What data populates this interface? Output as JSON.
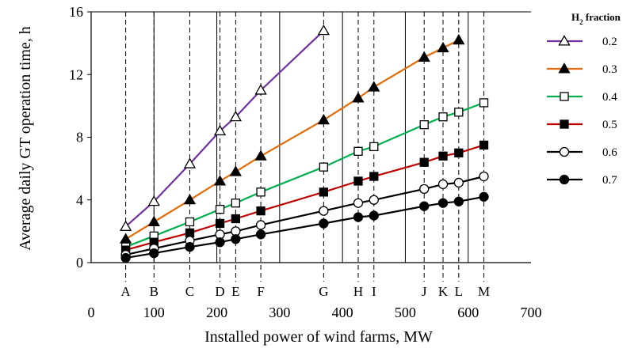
{
  "chart_data": {
    "type": "line",
    "xlabel": "Installed power of wind farms, MW",
    "ylabel": "Average daily GT operation time, h",
    "xlim": [
      0,
      700
    ],
    "ylim": [
      0,
      16
    ],
    "x_ticks": [
      "0",
      "100",
      "200",
      "300",
      "400",
      "500",
      "600",
      "700"
    ],
    "y_ticks": [
      "0",
      "4",
      "8",
      "12",
      "16"
    ],
    "grid": "vertical major gridlines",
    "legend_title_main": "H",
    "legend_title_sub": "2",
    "legend_title_rest": " fraction",
    "legend_position": "right",
    "sites": [
      {
        "label": "A",
        "x": 55
      },
      {
        "label": "B",
        "x": 100
      },
      {
        "label": "C",
        "x": 157
      },
      {
        "label": "D",
        "x": 205
      },
      {
        "label": "E",
        "x": 230
      },
      {
        "label": "F",
        "x": 270
      },
      {
        "label": "G",
        "x": 370
      },
      {
        "label": "H",
        "x": 425
      },
      {
        "label": "I",
        "x": 450
      },
      {
        "label": "J",
        "x": 530
      },
      {
        "label": "K",
        "x": 560
      },
      {
        "label": "L",
        "x": 585
      },
      {
        "label": "M",
        "x": 625
      }
    ],
    "series": [
      {
        "name": "0.2",
        "color": "#7030A0",
        "marker": "triangle-open",
        "x": [
          55,
          100,
          157,
          205,
          230,
          270,
          370
        ],
        "y": [
          2.3,
          3.9,
          6.3,
          8.4,
          9.3,
          11.0,
          14.8
        ]
      },
      {
        "name": "0.3",
        "color": "#E36C09",
        "marker": "triangle-filled",
        "x": [
          55,
          100,
          157,
          205,
          230,
          270,
          370,
          425,
          450,
          530,
          560,
          585
        ],
        "y": [
          1.5,
          2.6,
          4.0,
          5.2,
          5.8,
          6.8,
          9.1,
          10.5,
          11.2,
          13.1,
          13.7,
          14.2
        ]
      },
      {
        "name": "0.4",
        "color": "#00B050",
        "marker": "square-open",
        "x": [
          55,
          100,
          157,
          205,
          230,
          270,
          370,
          425,
          450,
          530,
          560,
          585,
          625
        ],
        "y": [
          1.0,
          1.7,
          2.6,
          3.4,
          3.8,
          4.5,
          6.1,
          7.1,
          7.4,
          8.8,
          9.3,
          9.6,
          10.2
        ]
      },
      {
        "name": "0.5",
        "color": "#C00000",
        "marker": "square-filled",
        "x": [
          55,
          100,
          157,
          205,
          230,
          270,
          370,
          425,
          450,
          530,
          560,
          585,
          625
        ],
        "y": [
          0.8,
          1.3,
          1.9,
          2.5,
          2.8,
          3.3,
          4.5,
          5.2,
          5.5,
          6.4,
          6.8,
          7.0,
          7.5
        ]
      },
      {
        "name": "0.6",
        "color": "#000000",
        "marker": "circle-open",
        "x": [
          55,
          100,
          157,
          205,
          230,
          270,
          370,
          425,
          450,
          530,
          560,
          585,
          625
        ],
        "y": [
          0.5,
          0.9,
          1.4,
          1.8,
          2.0,
          2.4,
          3.3,
          3.8,
          4.0,
          4.7,
          5.0,
          5.1,
          5.5
        ]
      },
      {
        "name": "0.7",
        "color": "#000000",
        "marker": "circle-filled",
        "x": [
          55,
          100,
          157,
          205,
          230,
          270,
          370,
          425,
          450,
          530,
          560,
          585,
          625
        ],
        "y": [
          0.3,
          0.6,
          1.0,
          1.3,
          1.5,
          1.8,
          2.5,
          2.9,
          3.0,
          3.6,
          3.8,
          3.9,
          4.2
        ]
      }
    ]
  }
}
